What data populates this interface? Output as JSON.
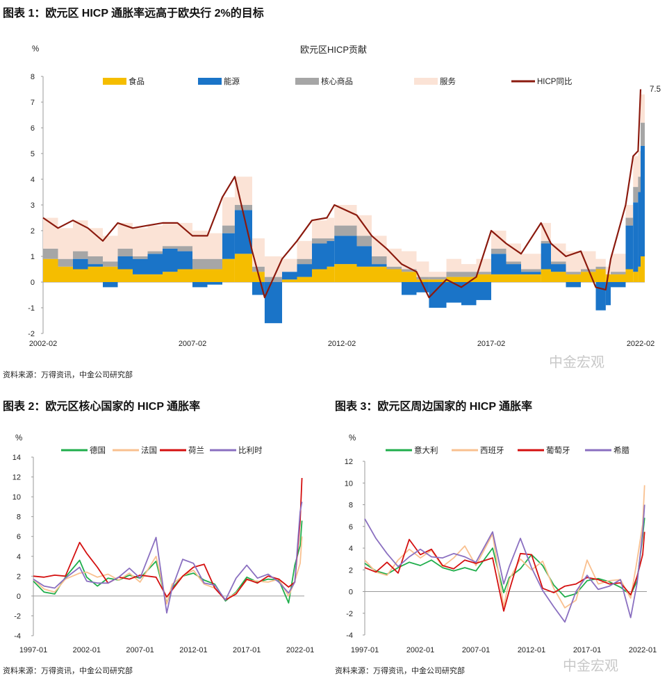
{
  "figures": [
    {
      "title": "图表 1：欧元区 HICP 通胀率远高于欧央行 2%的目标",
      "source": "资料来源：万得资讯，中金公司研究部"
    },
    {
      "title": "图表 2：欧元区核心国家的 HICP 通胀率",
      "source": "资料来源：万得资讯，中金公司研究部"
    },
    {
      "title": "图表 3：欧元区周边国家的 HICP 通胀率",
      "source": "资料来源：万得资讯，中金公司研究部"
    }
  ],
  "watermark": "中金宏观",
  "chart_data": [
    {
      "type": "stacked-bar+line",
      "title": "欧元区HICP贡献",
      "ylabel": "%",
      "ylim": [
        -2,
        8
      ],
      "yticks": [
        -2,
        -1,
        0,
        1,
        2,
        3,
        4,
        5,
        6,
        7,
        8
      ],
      "xticks": [
        "2002-02",
        "2007-02",
        "2012-02",
        "2017-02",
        "2022-02"
      ],
      "legend": "top",
      "end_label": "7.5",
      "x": [
        "2002-02",
        "2002-08",
        "2003-02",
        "2003-08",
        "2004-02",
        "2004-08",
        "2005-02",
        "2005-08",
        "2006-02",
        "2006-08",
        "2007-02",
        "2007-08",
        "2008-02",
        "2008-07",
        "2009-02",
        "2009-07",
        "2010-02",
        "2010-08",
        "2011-02",
        "2011-08",
        "2011-11",
        "2012-08",
        "2013-02",
        "2013-08",
        "2014-02",
        "2014-08",
        "2015-01",
        "2015-08",
        "2016-02",
        "2016-08",
        "2017-02",
        "2017-08",
        "2018-02",
        "2018-10",
        "2019-02",
        "2019-08",
        "2020-02",
        "2020-08",
        "2020-12",
        "2021-02",
        "2021-08",
        "2021-11",
        "2022-01",
        "2022-02"
      ],
      "series": [
        {
          "name": "食品",
          "kind": "bar",
          "color": "#f5bd00",
          "values": [
            0.9,
            0.6,
            0.5,
            0.6,
            0.6,
            0.5,
            0.3,
            0.3,
            0.4,
            0.5,
            0.5,
            0.5,
            0.9,
            1.1,
            0.4,
            0.0,
            0.1,
            0.2,
            0.5,
            0.6,
            0.7,
            0.6,
            0.6,
            0.5,
            0.4,
            0.1,
            0.1,
            0.2,
            0.2,
            0.3,
            0.3,
            0.3,
            0.3,
            0.5,
            0.4,
            0.3,
            0.4,
            0.5,
            0.3,
            0.3,
            0.5,
            0.4,
            0.6,
            1.0
          ]
        },
        {
          "name": "能源",
          "kind": "bar",
          "color": "#1a74c8",
          "values": [
            0.0,
            0.0,
            0.4,
            0.1,
            -0.2,
            0.5,
            0.6,
            0.8,
            0.9,
            0.7,
            -0.2,
            -0.1,
            1.0,
            1.7,
            -0.5,
            -1.6,
            0.3,
            0.5,
            1.0,
            1.0,
            1.1,
            0.8,
            0.1,
            0.0,
            -0.5,
            -0.4,
            -1.0,
            -0.8,
            -0.9,
            -0.7,
            0.8,
            0.4,
            0.1,
            1.0,
            0.3,
            -0.2,
            0.0,
            -1.1,
            -0.9,
            -0.2,
            1.7,
            2.7,
            2.9,
            4.3
          ]
        },
        {
          "name": "核心商品",
          "kind": "bar",
          "color": "#a6a6a6",
          "values": [
            0.4,
            0.3,
            0.3,
            0.3,
            0.2,
            0.3,
            0.1,
            0.1,
            0.1,
            0.2,
            0.4,
            0.4,
            0.3,
            0.2,
            0.2,
            0.2,
            0.0,
            0.2,
            0.2,
            0.1,
            0.4,
            0.4,
            0.3,
            0.1,
            0.1,
            0.1,
            0.1,
            0.2,
            0.2,
            0.1,
            0.2,
            0.1,
            0.1,
            0.1,
            0.1,
            0.1,
            0.1,
            0.1,
            0.0,
            0.1,
            0.3,
            0.6,
            0.6,
            0.9
          ]
        },
        {
          "name": "服务",
          "kind": "bar",
          "color": "#fbe3d6",
          "values": [
            1.2,
            1.2,
            1.2,
            1.1,
            1.0,
            1.0,
            1.1,
            1.0,
            0.9,
            0.9,
            1.1,
            1.0,
            1.1,
            1.1,
            1.1,
            0.8,
            0.5,
            0.7,
            0.7,
            0.8,
            0.8,
            0.8,
            0.8,
            0.7,
            0.7,
            0.6,
            0.2,
            0.5,
            0.3,
            0.5,
            0.7,
            0.7,
            0.6,
            0.7,
            0.7,
            0.8,
            0.7,
            0.3,
            0.3,
            0.7,
            0.5,
            1.2,
            1.0,
            1.1
          ]
        },
        {
          "name": "HICP同比",
          "kind": "line",
          "color": "#8b1a0e",
          "values": [
            2.5,
            2.1,
            2.4,
            2.1,
            1.6,
            2.3,
            2.1,
            2.2,
            2.3,
            2.3,
            1.8,
            1.8,
            3.3,
            4.1,
            1.2,
            -0.6,
            0.9,
            1.6,
            2.4,
            2.5,
            3.0,
            2.6,
            1.8,
            1.3,
            0.7,
            0.4,
            -0.6,
            0.1,
            -0.2,
            0.2,
            2.0,
            1.5,
            1.1,
            2.3,
            1.5,
            1.0,
            1.2,
            -0.2,
            -0.3,
            0.9,
            3.0,
            4.9,
            5.1,
            7.5
          ]
        }
      ]
    },
    {
      "type": "line",
      "ylabel": "%",
      "ylim": [
        -4,
        14
      ],
      "yticks": [
        -4,
        -2,
        0,
        2,
        4,
        6,
        8,
        10,
        12,
        14
      ],
      "xticks": [
        "1997-01",
        "2002-01",
        "2007-01",
        "2012-01",
        "2017-01",
        "2022-01"
      ],
      "legend": "top",
      "x": [
        "1997-01",
        "1998-01",
        "1999-01",
        "2000-01",
        "2001-05",
        "2002-01",
        "2003-01",
        "2004-01",
        "2005-01",
        "2006-01",
        "2007-01",
        "2008-07",
        "2009-07",
        "2010-01",
        "2011-01",
        "2012-01",
        "2013-01",
        "2014-01",
        "2015-01",
        "2016-01",
        "2017-01",
        "2018-01",
        "2019-01",
        "2020-01",
        "2020-12",
        "2021-07",
        "2022-01",
        "2022-03"
      ],
      "series": [
        {
          "name": "德国",
          "color": "#1fae4b",
          "values": [
            1.5,
            0.4,
            0.2,
            1.9,
            3.6,
            1.9,
            1.0,
            1.8,
            1.6,
            2.1,
            1.8,
            3.5,
            -0.7,
            0.8,
            2.0,
            2.3,
            1.6,
            1.2,
            -0.5,
            0.4,
            1.9,
            1.4,
            1.7,
            1.6,
            -0.7,
            3.1,
            5.1,
            7.6
          ]
        },
        {
          "name": "法国",
          "color": "#f9c08f",
          "values": [
            1.7,
            0.7,
            0.4,
            1.7,
            2.3,
            2.4,
            1.9,
            2.2,
            1.6,
            2.3,
            1.4,
            4.0,
            -0.8,
            1.2,
            2.0,
            2.6,
            1.2,
            0.8,
            -0.4,
            0.3,
            1.6,
            1.5,
            1.4,
            1.7,
            0.0,
            1.5,
            3.3,
            6.0
          ]
        },
        {
          "name": "荷兰",
          "color": "#d40f0f",
          "values": [
            2.0,
            1.9,
            2.1,
            2.0,
            5.4,
            4.3,
            2.9,
            1.3,
            1.9,
            1.7,
            2.1,
            1.9,
            -0.1,
            0.6,
            2.0,
            2.9,
            3.2,
            0.8,
            -0.4,
            0.2,
            1.7,
            1.3,
            2.0,
            1.7,
            0.9,
            1.4,
            7.6,
            11.9
          ]
        },
        {
          "name": "比利时",
          "color": "#8a6fc0",
          "values": [
            1.7,
            1.0,
            0.8,
            1.8,
            2.9,
            1.5,
            1.3,
            1.3,
            1.9,
            2.8,
            1.8,
            5.9,
            -1.7,
            0.8,
            3.7,
            3.3,
            1.3,
            1.1,
            -0.4,
            1.8,
            3.1,
            1.8,
            2.2,
            1.4,
            0.3,
            1.4,
            8.5,
            9.5
          ]
        }
      ]
    },
    {
      "type": "line",
      "ylabel": "%",
      "ylim": [
        -4,
        12
      ],
      "yticks": [
        -4,
        -2,
        0,
        2,
        4,
        6,
        8,
        10,
        12
      ],
      "xticks": [
        "1997-01",
        "2002-01",
        "2007-01",
        "2012-01",
        "2017-01",
        "2022-01"
      ],
      "legend": "top",
      "x": [
        "1997-01",
        "1998-01",
        "1999-01",
        "2000-01",
        "2001-01",
        "2002-01",
        "2003-01",
        "2004-01",
        "2005-01",
        "2006-01",
        "2007-01",
        "2008-07",
        "2009-07",
        "2010-01",
        "2011-01",
        "2012-01",
        "2013-01",
        "2014-01",
        "2015-01",
        "2016-01",
        "2017-01",
        "2018-01",
        "2019-01",
        "2020-01",
        "2020-12",
        "2021-07",
        "2022-01",
        "2022-03"
      ],
      "series": [
        {
          "name": "意大利",
          "color": "#1fae4b",
          "values": [
            2.6,
            1.9,
            1.6,
            2.2,
            2.7,
            2.4,
            2.9,
            2.2,
            1.9,
            2.2,
            1.9,
            4.0,
            -0.1,
            1.3,
            2.1,
            3.4,
            2.4,
            0.6,
            -0.5,
            -0.2,
            1.0,
            1.2,
            0.9,
            0.4,
            -0.3,
            1.0,
            5.1,
            6.8
          ]
        },
        {
          "name": "西班牙",
          "color": "#f9c08f",
          "values": [
            2.9,
            1.8,
            1.5,
            2.9,
            3.9,
            3.1,
            3.8,
            2.3,
            3.1,
            4.2,
            2.4,
            5.3,
            -1.4,
            1.1,
            3.0,
            2.0,
            2.8,
            0.3,
            -1.5,
            -0.8,
            2.9,
            0.7,
            1.0,
            1.1,
            -0.6,
            2.9,
            6.2,
            9.8
          ]
        },
        {
          "name": "葡萄牙",
          "color": "#d40f0f",
          "values": [
            2.2,
            1.8,
            2.7,
            1.7,
            4.8,
            3.4,
            3.9,
            2.4,
            2.1,
            2.9,
            2.6,
            3.1,
            -1.8,
            0.1,
            3.5,
            3.4,
            0.3,
            -0.1,
            0.5,
            0.7,
            1.3,
            1.1,
            0.7,
            0.8,
            -0.3,
            1.4,
            3.4,
            5.5
          ]
        },
        {
          "name": "希腊",
          "color": "#8a6fc0",
          "values": [
            6.7,
            4.9,
            3.5,
            2.3,
            3.2,
            3.9,
            3.2,
            3.1,
            3.5,
            3.2,
            2.7,
            5.5,
            0.7,
            2.3,
            4.9,
            2.2,
            0.1,
            -1.4,
            -2.8,
            0.0,
            1.5,
            0.2,
            0.5,
            1.1,
            -2.4,
            0.8,
            5.5,
            8.0
          ]
        }
      ]
    }
  ]
}
